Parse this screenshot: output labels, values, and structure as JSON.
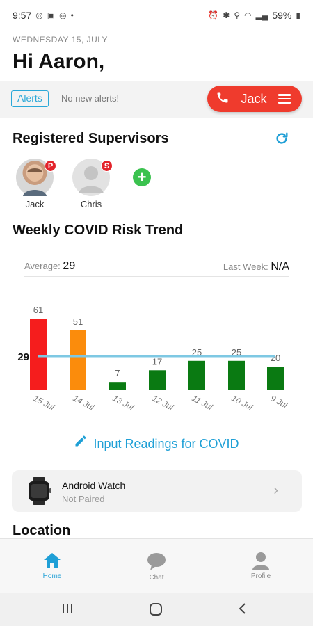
{
  "status_bar": {
    "time": "9:57",
    "battery": "59%"
  },
  "header": {
    "date": "WEDNESDAY 15, JULY",
    "greeting": "Hi Aaron,"
  },
  "alerts": {
    "badge": "Alerts",
    "text": "No new alerts!"
  },
  "call_pill": {
    "label": "Jack",
    "color": "#ef3b2d"
  },
  "supervisors": {
    "title": "Registered  Supervisors",
    "people": [
      {
        "name": "Jack",
        "role": "P"
      },
      {
        "name": "Chris",
        "role": "S"
      }
    ]
  },
  "risk": {
    "title": "Weekly COVID Risk Trend",
    "average_label": "Average:",
    "average_value": "29",
    "last_week_label": "Last Week:",
    "last_week_value": "N/A"
  },
  "chart_data": {
    "type": "bar",
    "categories": [
      "15 Jul",
      "14 Jul",
      "13 Jul",
      "12 Jul",
      "11 Jul",
      "10 Jul",
      "9 Jul"
    ],
    "values": [
      61,
      51,
      7,
      17,
      25,
      25,
      20
    ],
    "bar_colors": [
      "#f51d1d",
      "#fb8c0c",
      "#0a7a12",
      "#0a7a12",
      "#0a7a12",
      "#0a7a12",
      "#0a7a12"
    ],
    "average_line": {
      "value": 29,
      "label": "29",
      "color": "#7ec8e3"
    },
    "ylim": [
      0,
      61
    ],
    "grid": false
  },
  "input_link": {
    "label": "Input Readings for COVID"
  },
  "device": {
    "name": "Android Watch",
    "status": "Not Paired"
  },
  "location": {
    "title": "Location"
  },
  "tabs": [
    {
      "label": "Home",
      "icon": "home-icon",
      "active": true
    },
    {
      "label": "Chat",
      "icon": "chat-icon",
      "active": false
    },
    {
      "label": "Profile",
      "icon": "profile-icon",
      "active": false
    }
  ],
  "colors": {
    "accent": "#1f9fd6",
    "danger": "#ef3b2d",
    "add": "#3bc24f"
  }
}
